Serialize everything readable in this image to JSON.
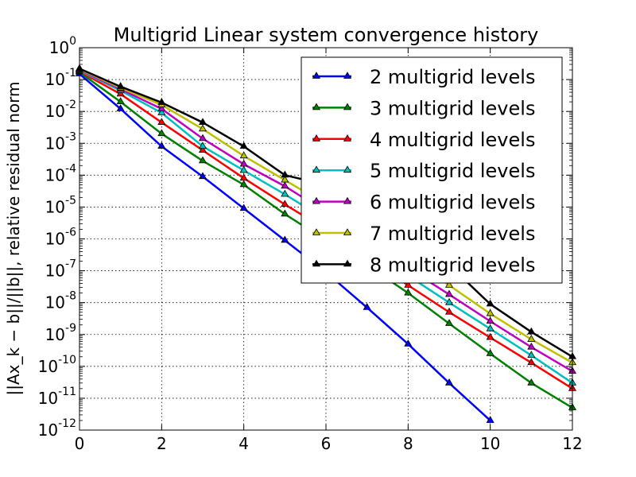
{
  "chart_data": {
    "type": "line",
    "title": "Multigrid Linear system convergence history",
    "ylabel": "||Ax_k − b||/||b||, relative residual norm",
    "xlabel": "",
    "y_scale": "log",
    "xlim": [
      0,
      12
    ],
    "ylim": [
      1e-12,
      1
    ],
    "grid": true,
    "legend_position": "top-right",
    "x_ticks": [
      "0",
      "2",
      "4",
      "6",
      "8",
      "10",
      "12"
    ],
    "y_ticks": [
      {
        "base": "10",
        "exp": "-12"
      },
      {
        "base": "10",
        "exp": "-11"
      },
      {
        "base": "10",
        "exp": "-10"
      },
      {
        "base": "10",
        "exp": "-9"
      },
      {
        "base": "10",
        "exp": "-8"
      },
      {
        "base": "10",
        "exp": "-7"
      },
      {
        "base": "10",
        "exp": "-6"
      },
      {
        "base": "10",
        "exp": "-5"
      },
      {
        "base": "10",
        "exp": "-4"
      },
      {
        "base": "10",
        "exp": "-3"
      },
      {
        "base": "10",
        "exp": "-2"
      },
      {
        "base": "10",
        "exp": "-1"
      },
      {
        "base": "10",
        "exp": "0"
      }
    ],
    "series": [
      {
        "name": "2 multigrid levels",
        "color": "#0000ff",
        "x": [
          0,
          1,
          2,
          3,
          4,
          5,
          6,
          7,
          8,
          9,
          10
        ],
        "y": [
          0.15,
          0.012,
          0.0008,
          9e-05,
          9e-06,
          9e-07,
          9e-08,
          7e-09,
          5e-10,
          3e-11,
          2e-12
        ]
      },
      {
        "name": "3 multigrid levels",
        "color": "#008000",
        "x": [
          0,
          1,
          2,
          3,
          4,
          5,
          6,
          7,
          8,
          9,
          10,
          11,
          12
        ],
        "y": [
          0.17,
          0.02,
          0.002,
          0.00028,
          5e-05,
          6e-06,
          9e-07,
          1.5e-07,
          2e-08,
          2.2e-09,
          2.5e-10,
          3e-11,
          5e-12
        ]
      },
      {
        "name": "4 multigrid levels",
        "color": "#ff0000",
        "x": [
          0,
          1,
          2,
          3,
          4,
          5,
          6,
          7,
          8,
          9,
          10,
          11,
          12
        ],
        "y": [
          0.18,
          0.035,
          0.0045,
          0.0006,
          8e-05,
          1.2e-05,
          2e-06,
          2.5e-07,
          3.5e-08,
          5e-09,
          8e-10,
          1.3e-10,
          2e-11
        ]
      },
      {
        "name": "5 multigrid levels",
        "color": "#00bfbf",
        "x": [
          0,
          1,
          2,
          3,
          4,
          5,
          6,
          7,
          8,
          9,
          10,
          11,
          12
        ],
        "y": [
          0.19,
          0.045,
          0.009,
          0.0008,
          0.00014,
          2.5e-05,
          4e-06,
          6e-07,
          7e-08,
          1e-08,
          1.5e-09,
          2.2e-10,
          3e-11
        ]
      },
      {
        "name": "6 multigrid levels",
        "color": "#bf00bf",
        "x": [
          0,
          1,
          2,
          3,
          4,
          5,
          6,
          7,
          8,
          9,
          10,
          11,
          12
        ],
        "y": [
          0.2,
          0.05,
          0.012,
          0.0014,
          0.00022,
          4.5e-05,
          7e-06,
          9e-07,
          1.2e-07,
          1.8e-08,
          2.6e-09,
          4e-10,
          7e-11
        ]
      },
      {
        "name": "7 multigrid levels",
        "color": "#bfbf00",
        "x": [
          0,
          1,
          2,
          3,
          4,
          5,
          6,
          7,
          8,
          9,
          10,
          11,
          12
        ],
        "y": [
          0.21,
          0.055,
          0.016,
          0.0028,
          0.0004,
          7e-05,
          1.2e-05,
          1.8e-06,
          2.5e-07,
          3.5e-08,
          4.5e-09,
          7e-10,
          1.3e-10
        ]
      },
      {
        "name": "8 multigrid levels",
        "color": "#000000",
        "x": [
          0,
          1,
          2,
          3,
          4,
          5,
          6,
          7,
          8,
          9,
          10,
          11,
          12
        ],
        "y": [
          0.22,
          0.06,
          0.019,
          0.0045,
          0.0008,
          0.0001,
          5e-05,
          8e-06,
          1e-06,
          1.5e-07,
          9e-09,
          1.2e-09,
          2e-10
        ]
      }
    ]
  }
}
